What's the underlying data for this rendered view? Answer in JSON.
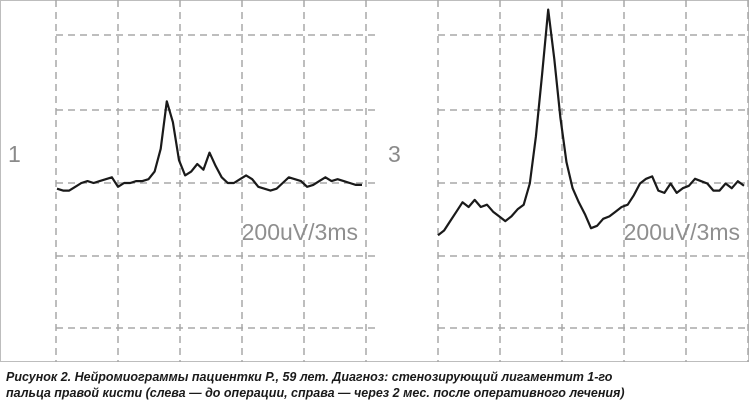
{
  "chart_data": [
    {
      "type": "line",
      "panel_label": "1",
      "scale_label": "200uV/3ms",
      "grid": true,
      "x": [
        0,
        1,
        2,
        3,
        4,
        5,
        6,
        7,
        8,
        9,
        10,
        11,
        12,
        13,
        14,
        15,
        16,
        17,
        18,
        19,
        20,
        21,
        22,
        23,
        24,
        25,
        26,
        27,
        28,
        29,
        30,
        31,
        32,
        33,
        34,
        35,
        36,
        37,
        38,
        39,
        40,
        41,
        42,
        43,
        44,
        45,
        46,
        47,
        48,
        49,
        50
      ],
      "values": [
        -0.3,
        -0.4,
        -0.4,
        -0.2,
        0.0,
        0.1,
        0.0,
        0.1,
        0.2,
        0.3,
        -0.2,
        0.0,
        0.0,
        0.1,
        0.1,
        0.2,
        0.6,
        1.8,
        4.3,
        3.2,
        1.2,
        0.4,
        0.6,
        1.0,
        0.7,
        1.6,
        0.9,
        0.3,
        0.0,
        0.0,
        0.2,
        0.4,
        0.2,
        -0.2,
        -0.3,
        -0.4,
        -0.3,
        0.0,
        0.3,
        0.2,
        0.1,
        -0.2,
        -0.1,
        0.1,
        0.3,
        0.1,
        0.2,
        0.1,
        0.0,
        -0.1,
        -0.1
      ]
    },
    {
      "type": "line",
      "panel_label": "3",
      "scale_label": "200uV/3ms",
      "grid": true,
      "x": [
        0,
        1,
        2,
        3,
        4,
        5,
        6,
        7,
        8,
        9,
        10,
        11,
        12,
        13,
        14,
        15,
        16,
        17,
        18,
        19,
        20,
        21,
        22,
        23,
        24,
        25,
        26,
        27,
        28,
        29,
        30,
        31,
        32,
        33,
        34,
        35,
        36,
        37,
        38,
        39,
        40,
        41,
        42,
        43,
        44,
        45,
        46,
        47,
        48,
        49,
        50
      ],
      "values": [
        -1.2,
        -1.0,
        -0.6,
        -0.2,
        0.2,
        0.0,
        0.3,
        0.0,
        0.1,
        -0.2,
        -0.4,
        -0.6,
        -0.4,
        -0.1,
        0.1,
        1.0,
        3.0,
        5.6,
        8.4,
        6.3,
        3.8,
        1.9,
        0.8,
        0.2,
        -0.3,
        -0.9,
        -0.8,
        -0.5,
        -0.4,
        -0.2,
        0.0,
        0.1,
        0.5,
        1.0,
        1.2,
        1.3,
        0.7,
        0.6,
        1.0,
        0.6,
        0.8,
        0.9,
        1.2,
        1.1,
        1.0,
        0.7,
        0.7,
        1.0,
        0.8,
        1.1,
        0.9
      ]
    }
  ],
  "caption": {
    "line1": "Рисунок 2. Нейромиограммы пациентки Р., 59 лет. Диагноз: стенозирующий лигаментит 1-го",
    "line2": "пальца правой кисти (слева — до операции, справа — через 2 мес. после оперативного лечения)"
  }
}
